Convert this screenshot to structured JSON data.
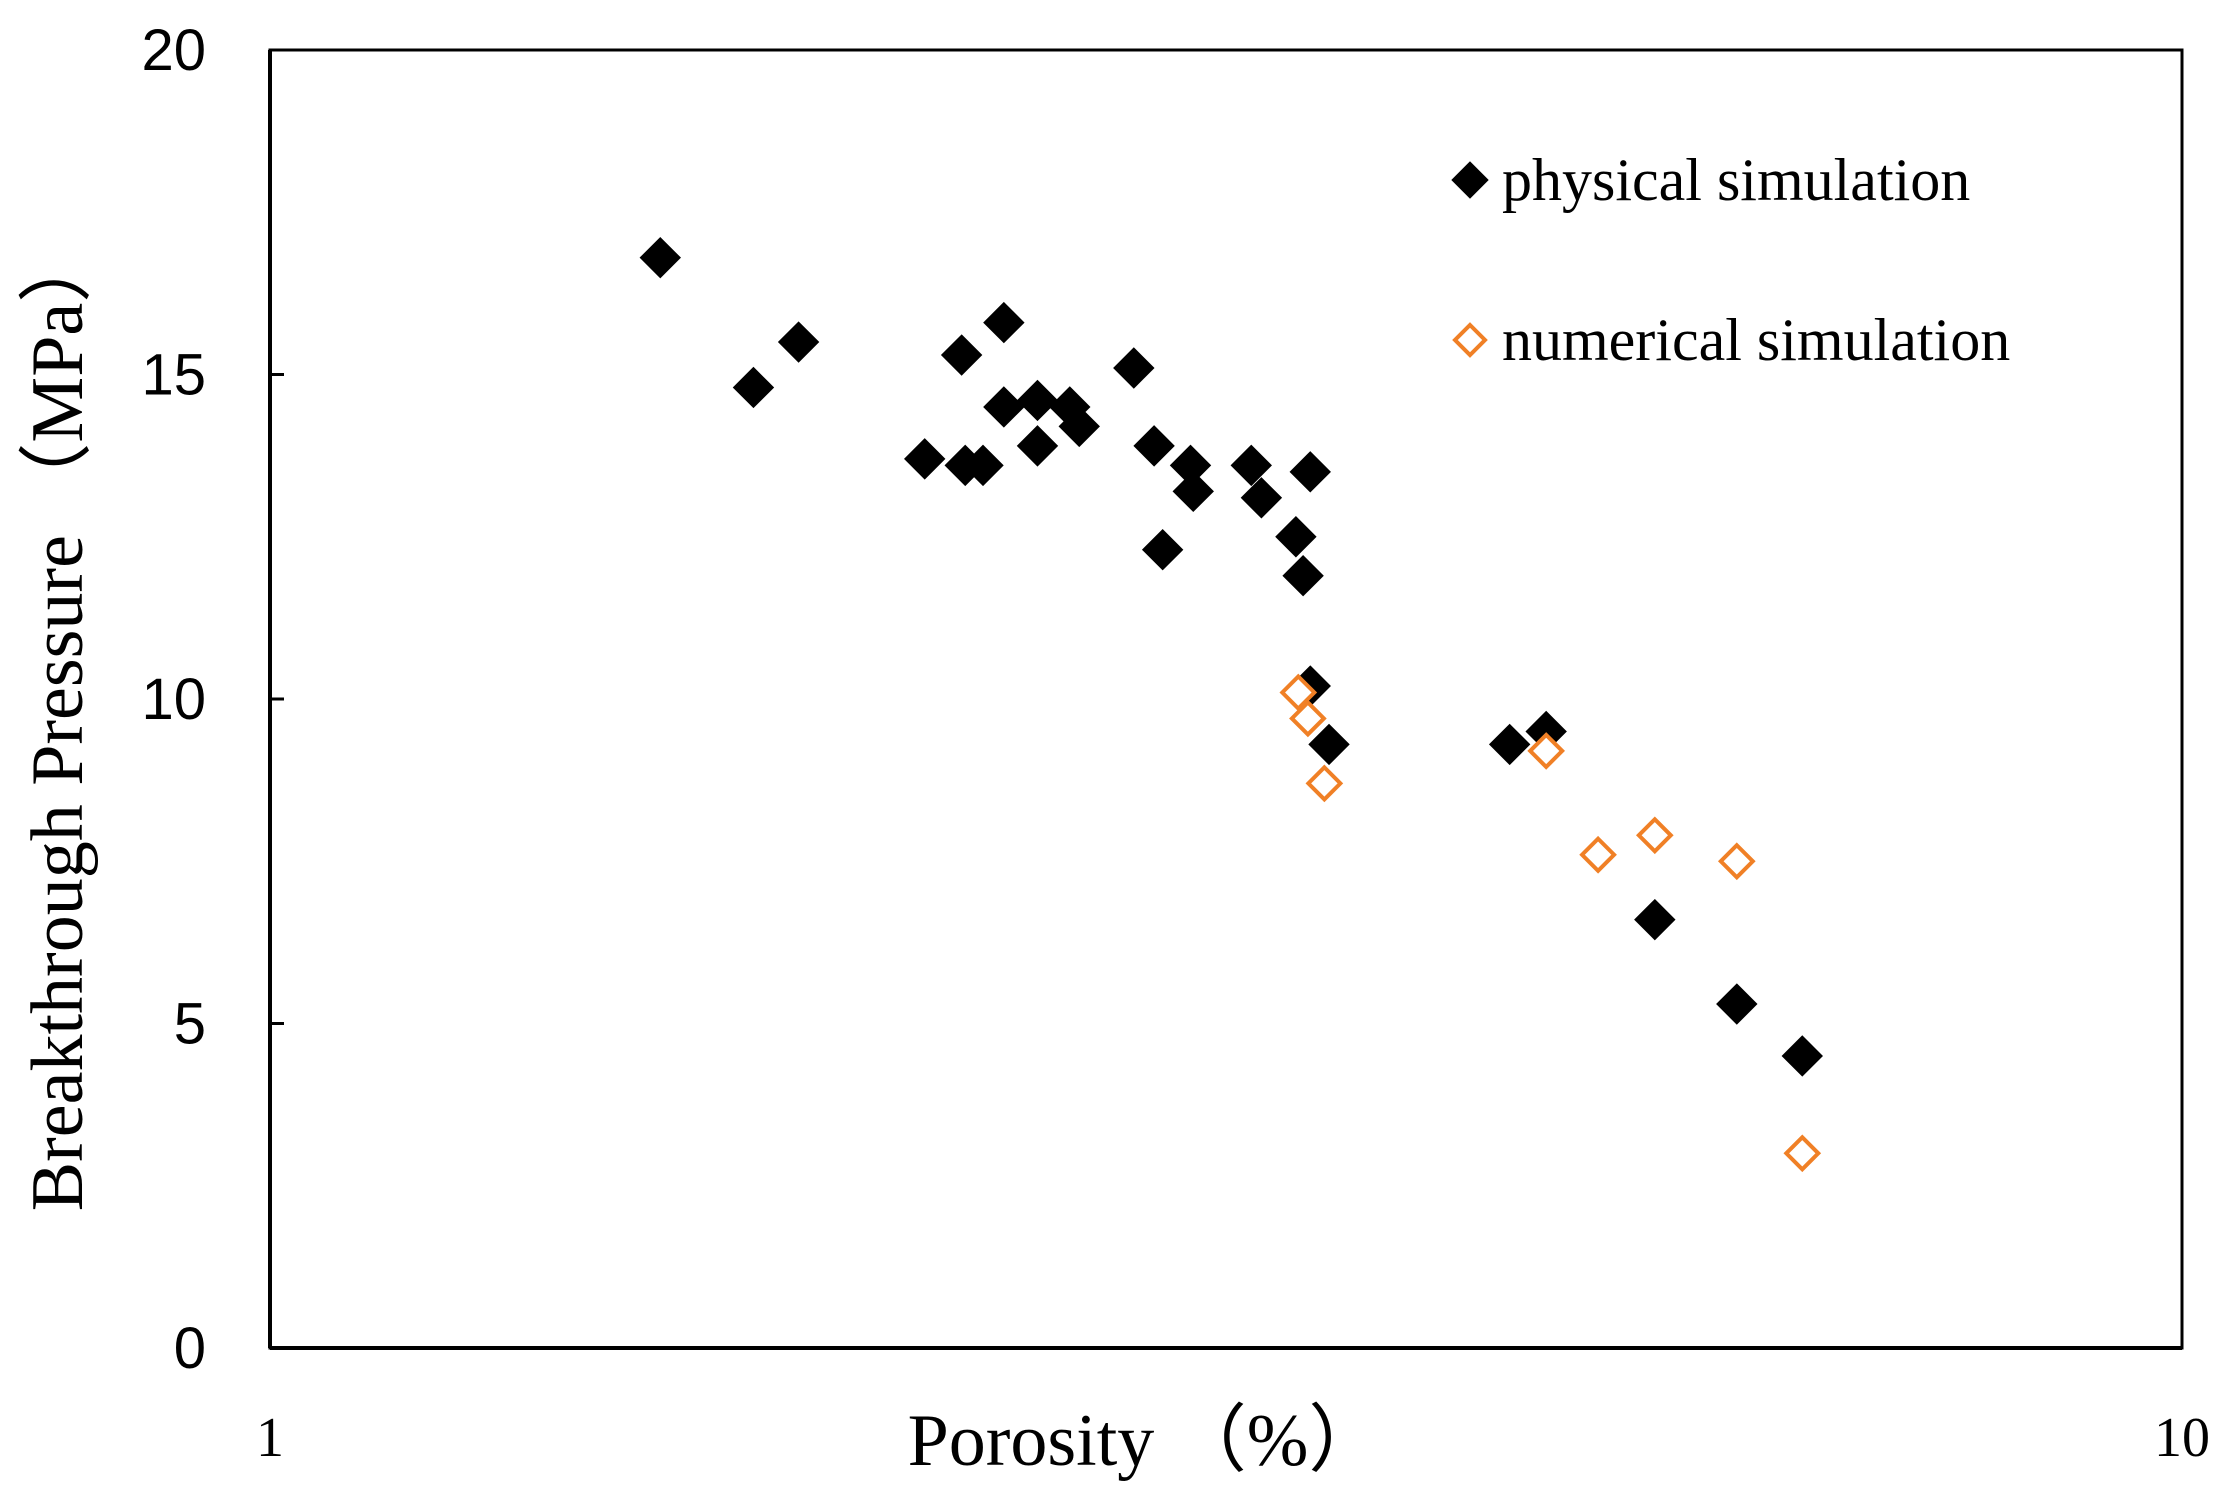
{
  "chart_data": {
    "type": "scatter",
    "title": "",
    "xlabel": "Porosity （%）",
    "ylabel": "Breakthrough Pressure （MPa）",
    "xscale": "log",
    "xlim": [
      1,
      10
    ],
    "ylim": [
      0,
      20
    ],
    "xticks": [
      1,
      10
    ],
    "xtick_labels": [
      "1",
      "10"
    ],
    "yticks": [
      0,
      5,
      10,
      15,
      20
    ],
    "ytick_labels": [
      "0",
      "5",
      "10",
      "15",
      "20"
    ],
    "grid": false,
    "legend_position": "top-right",
    "series": [
      {
        "name": "physical simulation",
        "marker": "filled-diamond",
        "color": "#000000",
        "points": [
          [
            1.6,
            16.8
          ],
          [
            1.79,
            14.8
          ],
          [
            1.89,
            15.5
          ],
          [
            2.2,
            13.7
          ],
          [
            2.3,
            15.3
          ],
          [
            2.31,
            13.6
          ],
          [
            2.36,
            13.6
          ],
          [
            2.42,
            15.8
          ],
          [
            2.42,
            14.5
          ],
          [
            2.52,
            14.6
          ],
          [
            2.52,
            13.9
          ],
          [
            2.62,
            14.5
          ],
          [
            2.65,
            14.2
          ],
          [
            2.83,
            15.1
          ],
          [
            2.9,
            13.9
          ],
          [
            2.93,
            12.3
          ],
          [
            3.03,
            13.6
          ],
          [
            3.04,
            13.2
          ],
          [
            3.26,
            13.6
          ],
          [
            3.3,
            13.1
          ],
          [
            3.44,
            12.5
          ],
          [
            3.47,
            11.9
          ],
          [
            3.5,
            13.5
          ],
          [
            3.5,
            10.2
          ],
          [
            3.58,
            9.3
          ],
          [
            4.45,
            9.3
          ],
          [
            4.65,
            9.5
          ],
          [
            5.3,
            6.6
          ],
          [
            5.85,
            5.3
          ],
          [
            6.33,
            4.5
          ]
        ]
      },
      {
        "name": "numerical simulation",
        "marker": "hollow-diamond",
        "color": "#F08026",
        "points": [
          [
            3.45,
            10.1
          ],
          [
            3.49,
            9.7
          ],
          [
            3.56,
            8.7
          ],
          [
            4.65,
            9.2
          ],
          [
            4.95,
            7.6
          ],
          [
            5.3,
            7.9
          ],
          [
            5.85,
            7.5
          ],
          [
            6.33,
            3.0
          ]
        ]
      }
    ]
  }
}
